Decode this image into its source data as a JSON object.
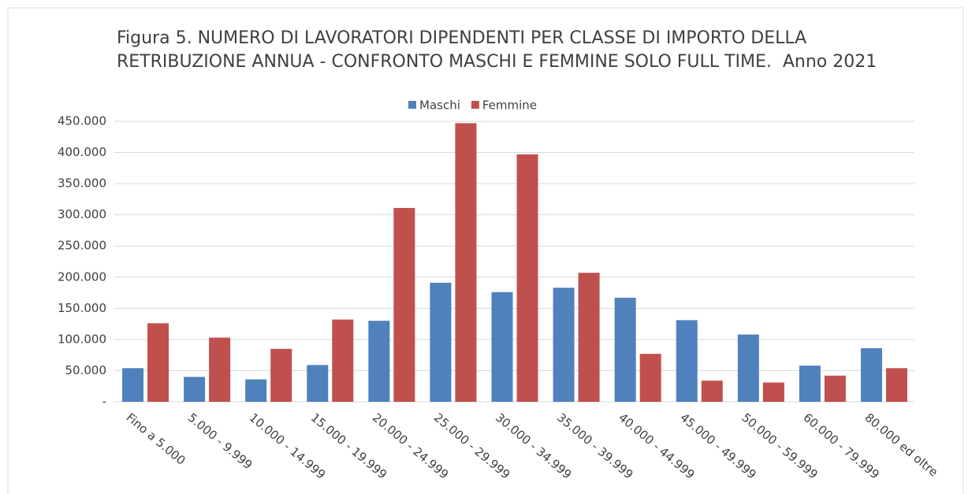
{
  "chart_data": {
    "type": "bar",
    "title": "Figura 5. NUMERO DI LAVORATORI DIPENDENTI PER CLASSE DI IMPORTO DELLA RETRIBUZIONE ANNUA - CONFRONTO MASCHI E FEMMINE SOLO FULL TIME.  Anno 2021",
    "categories": [
      "Fino a 5.000",
      "5.000 - 9.999",
      "10.000 - 14.999",
      "15.000 - 19.999",
      "20.000 - 24.999",
      "25.000 - 29.999",
      "30.000 - 34.999",
      "35.000 - 39.999",
      "40.000 - 44.999",
      "45.000 - 49.999",
      "50.000 - 59.999",
      "60.000 - 79.999",
      "80.000 ed oltre"
    ],
    "series": [
      {
        "name": "Maschi",
        "color": "#4f81bd",
        "values": [
          54000,
          40000,
          36000,
          59000,
          130000,
          191000,
          176000,
          183000,
          167000,
          131000,
          108000,
          58000,
          86000
        ]
      },
      {
        "name": "Femmine",
        "color": "#c0504d",
        "values": [
          126000,
          103000,
          85000,
          132000,
          311000,
          447000,
          397000,
          207000,
          77000,
          34000,
          31000,
          42000,
          54000
        ]
      }
    ],
    "ylim": [
      0,
      450000
    ],
    "yticks": [
      {
        "value": 0,
        "label": "-"
      },
      {
        "value": 50000,
        "label": "50.000"
      },
      {
        "value": 100000,
        "label": "100.000"
      },
      {
        "value": 150000,
        "label": "150.000"
      },
      {
        "value": 200000,
        "label": "200.000"
      },
      {
        "value": 250000,
        "label": "250.000"
      },
      {
        "value": 300000,
        "label": "300.000"
      },
      {
        "value": 350000,
        "label": "350.000"
      },
      {
        "value": 400000,
        "label": "400.000"
      },
      {
        "value": 450000,
        "label": "450.000"
      }
    ],
    "grid": true,
    "legend": "top"
  }
}
